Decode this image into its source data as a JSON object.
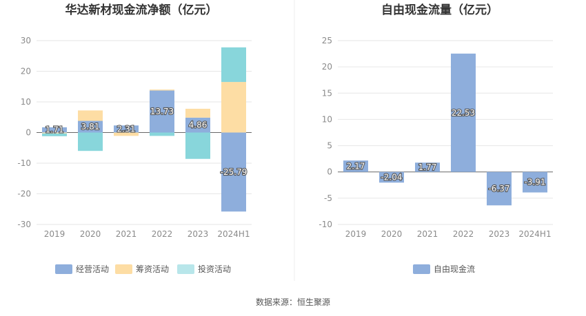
{
  "source": "数据来源：恒生聚源",
  "chart_data": [
    {
      "type": "bar",
      "stacked": true,
      "title": "华达新材现金流净额（亿元）",
      "categories": [
        "2019",
        "2020",
        "2021",
        "2022",
        "2023",
        "2024H1"
      ],
      "ylim": [
        -30,
        30
      ],
      "yticks": [
        30,
        20,
        10,
        0,
        -10,
        -20,
        -30
      ],
      "series": [
        {
          "name": "经营活动",
          "color": "#8eaedc",
          "values": [
            1.71,
            3.81,
            2.31,
            13.73,
            4.86,
            -25.79
          ],
          "labels": [
            "1.71",
            "3.81",
            "2.31",
            "13.73",
            "4.86",
            "-25.79"
          ]
        },
        {
          "name": "筹资活动",
          "color": "#fddda4",
          "values": [
            -0.3,
            3.4,
            -1.1,
            0.3,
            2.9,
            16.5
          ],
          "labels": []
        },
        {
          "name": "投资活动",
          "color": "#88d6db",
          "values": [
            -0.9,
            -6.0,
            0.0,
            -1.1,
            -8.6,
            11.3
          ],
          "labels": []
        }
      ],
      "legend": [
        "经营活动",
        "筹资活动",
        "投资活动"
      ],
      "legend_colors": [
        "#8eaedc",
        "#fddda4",
        "#b8e6ea"
      ]
    },
    {
      "type": "bar",
      "title": "自由现金流量（亿元）",
      "categories": [
        "2019",
        "2020",
        "2021",
        "2022",
        "2023",
        "2024H1"
      ],
      "ylim": [
        -10,
        25
      ],
      "yticks": [
        25,
        20,
        15,
        10,
        5,
        0,
        -5,
        -10
      ],
      "series": [
        {
          "name": "自由现金流",
          "color": "#8eaedc",
          "values": [
            2.17,
            -2.04,
            1.77,
            22.53,
            -6.37,
            -3.91
          ],
          "labels": [
            "2.17",
            "-2.04",
            "1.77",
            "22.53",
            "-6.37",
            "-3.91"
          ]
        }
      ],
      "legend": [
        "自由现金流"
      ],
      "legend_colors": [
        "#8eaedc"
      ]
    }
  ]
}
